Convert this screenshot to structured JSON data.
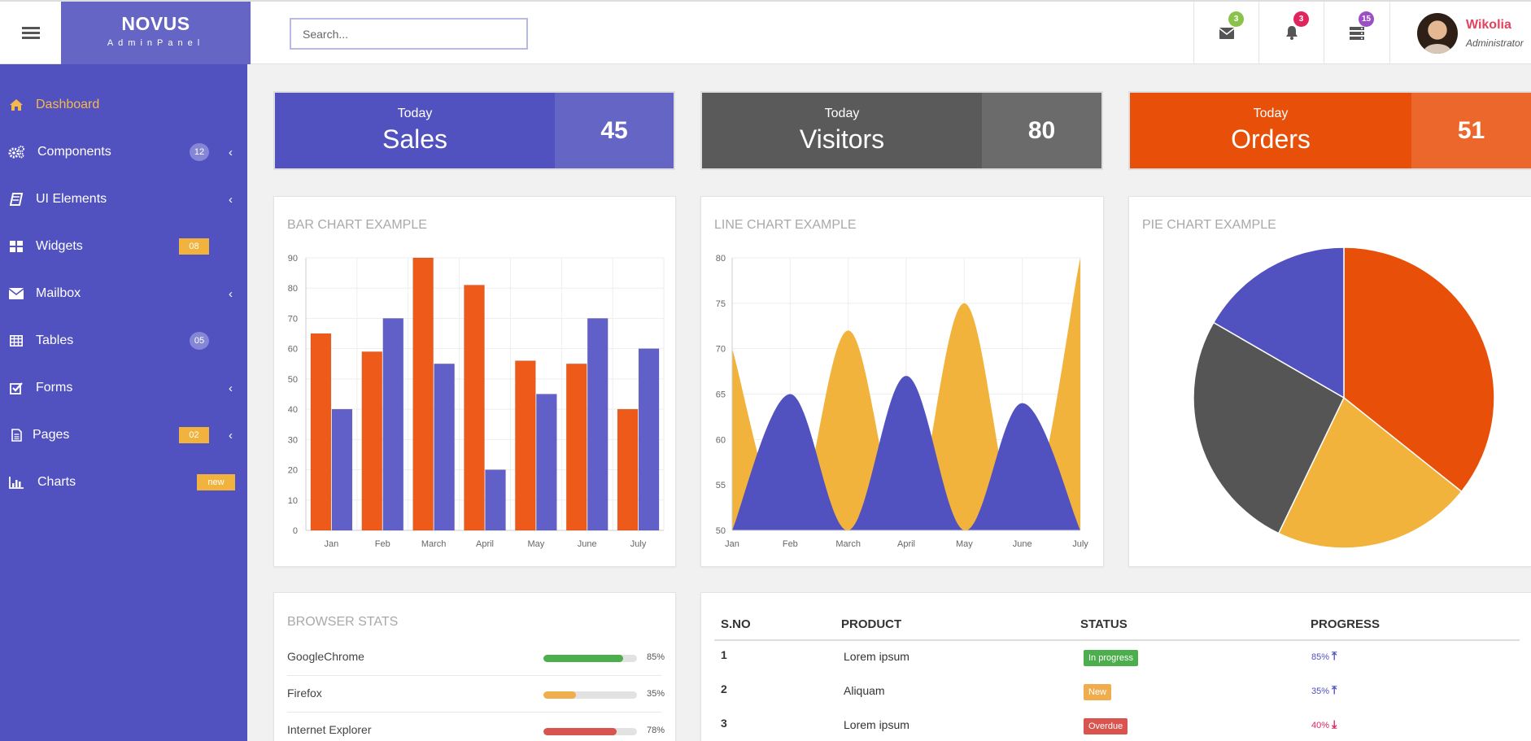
{
  "brand": {
    "name": "NOVUS",
    "sub": "AdminPanel"
  },
  "search": {
    "placeholder": "Search..."
  },
  "notifications": [
    {
      "icon": "envelope-icon",
      "count": "3",
      "color": "#8bc34a"
    },
    {
      "icon": "bell-icon",
      "count": "3",
      "color": "#e0245e"
    },
    {
      "icon": "server-icon",
      "count": "15",
      "color": "#9c4fc4"
    }
  ],
  "profile": {
    "name": "Wikolia",
    "role": "Administrator"
  },
  "sidebar": {
    "items": [
      {
        "label": "Dashboard",
        "icon": "home-icon",
        "active": true
      },
      {
        "label": "Components",
        "icon": "gears-icon",
        "badge": "12",
        "badge_style": "round",
        "chevron": true
      },
      {
        "label": "UI Elements",
        "icon": "book-icon",
        "chevron": true
      },
      {
        "label": "Widgets",
        "icon": "grid-icon",
        "badge": "08",
        "badge_style": "rect"
      },
      {
        "label": "Mailbox",
        "icon": "envelope-icon",
        "chevron": true
      },
      {
        "label": "Tables",
        "icon": "table-icon",
        "badge": "05",
        "badge_style": "round"
      },
      {
        "label": "Forms",
        "icon": "check-square-icon",
        "chevron": true
      },
      {
        "label": "Pages",
        "icon": "file-icon",
        "badge": "02",
        "badge_style": "rect",
        "chevron": true
      },
      {
        "label": "Charts",
        "icon": "bar-chart-icon",
        "badge": "new",
        "badge_style": "rect"
      }
    ]
  },
  "stats": [
    {
      "period": "Today",
      "label": "Sales",
      "value": "45",
      "color_main": "#5152c0",
      "color_side": "#6565c6"
    },
    {
      "period": "Today",
      "label": "Visitors",
      "value": "80",
      "color_main": "#5a5a5a",
      "color_side": "#6b6b6b"
    },
    {
      "period": "Today",
      "label": "Orders",
      "value": "51",
      "color_main": "#e8500a",
      "color_side": "#ec672b"
    }
  ],
  "panels": {
    "bar_title": "BAR CHART EXAMPLE",
    "line_title": "LINE CHART EXAMPLE",
    "pie_title": "PIE CHART EXAMPLE",
    "browser_title": "BROWSER STATS"
  },
  "chart_data": [
    {
      "type": "bar",
      "title": "BAR CHART EXAMPLE",
      "categories": [
        "Jan",
        "Feb",
        "March",
        "April",
        "May",
        "June",
        "July"
      ],
      "series": [
        {
          "values": [
            65,
            59,
            90,
            81,
            56,
            55,
            40
          ],
          "color": "#ee5a19"
        },
        {
          "values": [
            40,
            70,
            55,
            20,
            45,
            70,
            60
          ],
          "color": "#6060c8"
        }
      ],
      "ylim": [
        0,
        90
      ],
      "yticks": [
        0,
        10,
        20,
        30,
        40,
        50,
        60,
        70,
        80,
        90
      ],
      "grid": true
    },
    {
      "type": "area",
      "title": "LINE CHART EXAMPLE",
      "categories": [
        "Jan",
        "Feb",
        "March",
        "April",
        "May",
        "June",
        "July"
      ],
      "series": [
        {
          "values": [
            70,
            50,
            72,
            50,
            75,
            50,
            80
          ],
          "color": "#f2b33d"
        },
        {
          "values": [
            50,
            65,
            50,
            67,
            50,
            64,
            50
          ],
          "color": "#5152c0"
        }
      ],
      "ylim": [
        50,
        80
      ],
      "yticks": [
        50,
        55,
        60,
        65,
        70,
        75,
        80
      ],
      "grid": true
    },
    {
      "type": "pie",
      "title": "PIE CHART EXAMPLE",
      "slices": [
        {
          "value": 30,
          "color": "#e8500a"
        },
        {
          "value": 18,
          "color": "#f2b33d"
        },
        {
          "value": 22,
          "color": "#555555"
        },
        {
          "value": 14,
          "color": "#5152c0"
        }
      ]
    }
  ],
  "browsers": [
    {
      "name": "GoogleChrome",
      "percent": 85,
      "label": "85%",
      "color": "#4cae4c"
    },
    {
      "name": "Firefox",
      "percent": 35,
      "label": "35%",
      "color": "#f0ad4e"
    },
    {
      "name": "Internet Explorer",
      "percent": 78,
      "label": "78%",
      "color": "#d9534f"
    }
  ],
  "orders_table": {
    "headers": [
      "S.NO",
      "PRODUCT",
      "STATUS",
      "PROGRESS"
    ],
    "rows": [
      {
        "no": "1",
        "product": "Lorem ipsum",
        "status": "In progress",
        "status_color": "#4cae4c",
        "progress": "85%",
        "trend": "up",
        "progress_color": "#5152c0"
      },
      {
        "no": "2",
        "product": "Aliquam",
        "status": "New",
        "status_color": "#f0ad4e",
        "progress": "35%",
        "trend": "up",
        "progress_color": "#5152c0"
      },
      {
        "no": "3",
        "product": "Lorem ipsum",
        "status": "Overdue",
        "status_color": "#d9534f",
        "progress": "40%",
        "trend": "down",
        "progress_color": "#e0245e"
      }
    ]
  }
}
